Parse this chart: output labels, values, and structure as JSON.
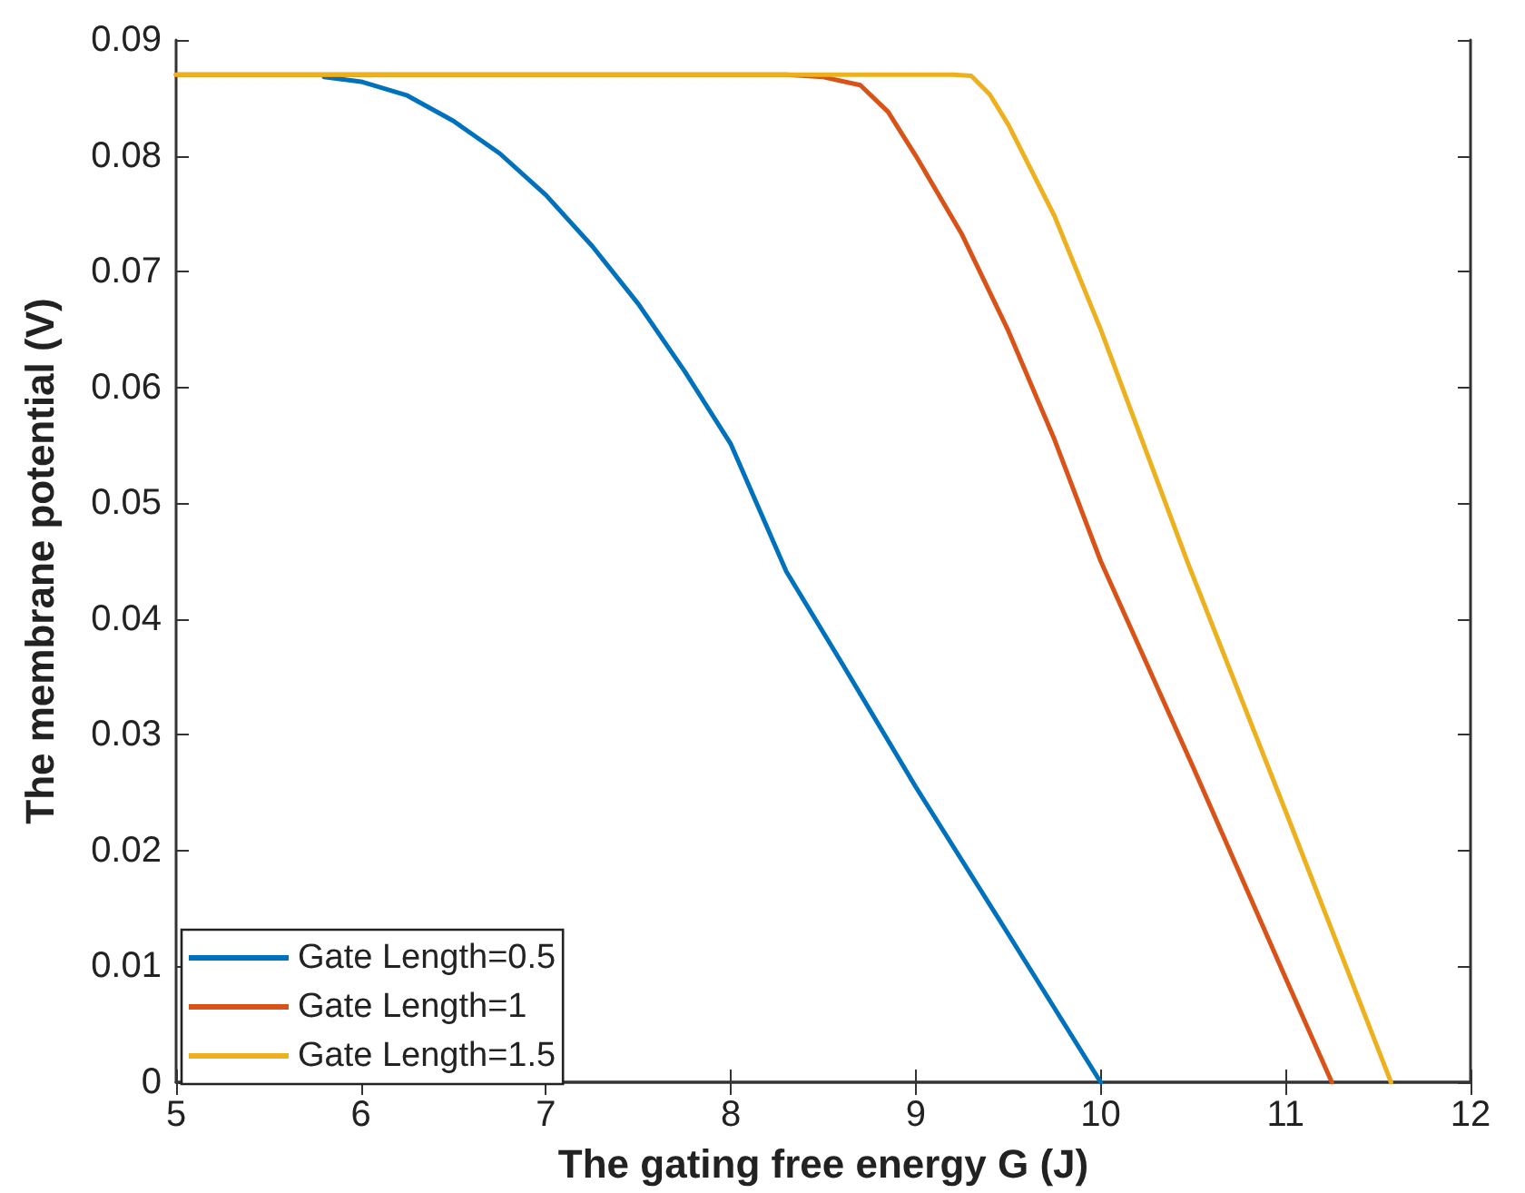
{
  "chart_data": {
    "type": "line",
    "xlabel": "The gating free energy G (J)",
    "ylabel": "The membrane potential (V)",
    "xlim": [
      5,
      12
    ],
    "xticks": [
      5,
      6,
      7,
      8,
      9,
      10,
      11,
      12
    ],
    "ylim": [
      0,
      0.09
    ],
    "yticks": [
      0,
      0.01,
      0.02,
      0.03,
      0.04,
      0.05,
      0.06,
      0.07,
      0.08,
      0.09
    ],
    "grid": false,
    "legend": "bottom left",
    "marker": "none",
    "line_style": "solid",
    "series": [
      {
        "name": "Gate Length=0.5",
        "color": "#0072bd",
        "x": [
          5.8,
          6,
          6.25,
          6.5,
          6.75,
          7,
          7.25,
          7.5,
          7.75,
          8,
          8.3,
          8.6,
          9,
          9.5,
          10
        ],
        "values": [
          0.0868,
          0.0864,
          0.0852,
          0.083,
          0.0802,
          0.0766,
          0.0722,
          0.0672,
          0.0614,
          0.0551,
          0.0441,
          0.0362,
          0.0255,
          0.0128,
          0
        ]
      },
      {
        "name": "Gate Length=1",
        "color": "#d95319",
        "x": [
          5,
          8.3,
          8.5,
          8.7,
          8.85,
          9,
          9.25,
          9.5,
          9.75,
          10,
          10.5,
          11,
          11.25
        ],
        "values": [
          0.087,
          0.087,
          0.0868,
          0.0861,
          0.0838,
          0.08,
          0.0732,
          0.0649,
          0.0555,
          0.045,
          0.0272,
          0.009,
          0
        ]
      },
      {
        "name": "Gate Length=1.5",
        "color": "#edb120",
        "x": [
          5,
          9.2,
          9.3,
          9.4,
          9.5,
          9.75,
          10,
          10.47,
          11,
          11.57
        ],
        "values": [
          0.087,
          0.087,
          0.0869,
          0.0853,
          0.0827,
          0.0748,
          0.065,
          0.0449,
          0.0234,
          0
        ]
      }
    ]
  }
}
